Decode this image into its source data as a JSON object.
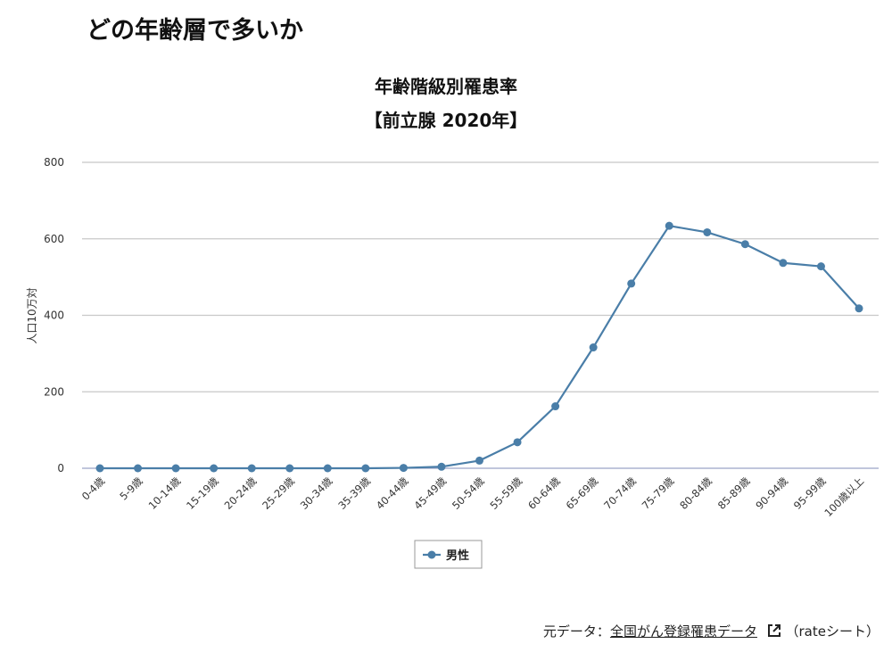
{
  "heading": "どの年齢層で多いか",
  "chart_data": {
    "type": "line",
    "title": "年齢階級別罹患率",
    "subtitle": "【前立腺 2020年】",
    "ylabel": "人口10万対",
    "xlabel": "",
    "ylim": [
      0,
      800
    ],
    "yticks": [
      0,
      200,
      400,
      600,
      800
    ],
    "grid": true,
    "legend": "bottom",
    "categories": [
      "0-4歳",
      "5-9歳",
      "10-14歳",
      "15-19歳",
      "20-24歳",
      "25-29歳",
      "30-34歳",
      "35-39歳",
      "40-44歳",
      "45-49歳",
      "50-54歳",
      "55-59歳",
      "60-64歳",
      "65-69歳",
      "70-74歳",
      "75-79歳",
      "80-84歳",
      "85-89歳",
      "90-94歳",
      "95-99歳",
      "100歳以上"
    ],
    "series": [
      {
        "name": "男性",
        "color": "#4a7ea8",
        "values": [
          0,
          0,
          0,
          0,
          0,
          0,
          0,
          0,
          1,
          4,
          20,
          68,
          162,
          316,
          483,
          634,
          617,
          586,
          537,
          528,
          418
        ]
      }
    ]
  },
  "source": {
    "prefix": "元データ：",
    "link": "全国がん登録罹患データ",
    "suffix": "（rateシート）",
    "icon": "external-link-icon"
  }
}
